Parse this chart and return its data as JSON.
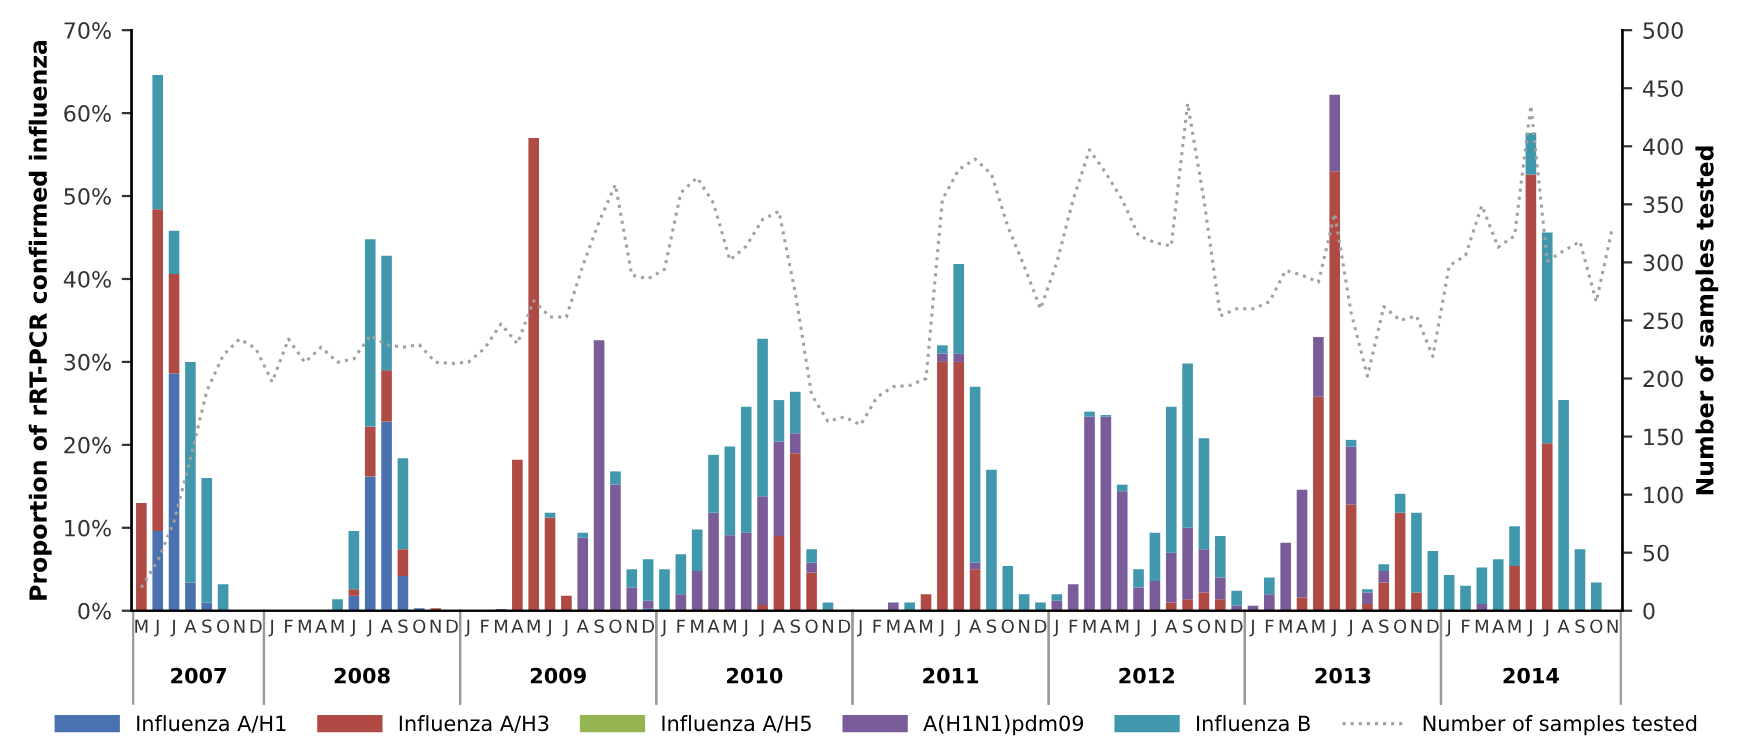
{
  "chart_data": {
    "type": "bar",
    "stacked": true,
    "ylabel": "Proportion of rRT-PCR confirmed influenza",
    "y2label": "Number of samples tested",
    "categories": [
      "M",
      "J",
      "J",
      "A",
      "S",
      "O",
      "N",
      "D",
      "J",
      "F",
      "M",
      "A",
      "M",
      "J",
      "J",
      "A",
      "S",
      "O",
      "N",
      "D",
      "J",
      "F",
      "M",
      "A",
      "M",
      "J",
      "J",
      "A",
      "S",
      "O",
      "N",
      "D",
      "J",
      "F",
      "M",
      "A",
      "M",
      "J",
      "J",
      "A",
      "S",
      "O",
      "N",
      "D",
      "J",
      "F",
      "M",
      "A",
      "M",
      "J",
      "J",
      "A",
      "S",
      "O",
      "N",
      "D",
      "J",
      "F",
      "M",
      "A",
      "M",
      "J",
      "J",
      "A",
      "S",
      "O",
      "N",
      "D",
      "J",
      "F",
      "M",
      "A",
      "M",
      "J",
      "J",
      "A",
      "S",
      "O",
      "N",
      "D",
      "J",
      "F",
      "M",
      "A",
      "M",
      "J",
      "J",
      "A",
      "S",
      "O",
      "N"
    ],
    "annotations": [
      "2007",
      "2008",
      "2009",
      "2010",
      "2011",
      "2012",
      "2013",
      "2014"
    ],
    "ylim": [
      0,
      70
    ],
    "yticks": [
      {
        "value": 0,
        "label": "0%"
      },
      {
        "value": 10,
        "label": "10%"
      },
      {
        "value": 20,
        "label": "20%"
      },
      {
        "value": 30,
        "label": "30%"
      },
      {
        "value": 40,
        "label": "40%"
      },
      {
        "value": 50,
        "label": "50%"
      },
      {
        "value": 60,
        "label": "60%"
      },
      {
        "value": 70,
        "label": "70%"
      }
    ],
    "y2lim": [
      0,
      500
    ],
    "y2ticks": [
      0,
      50,
      100,
      150,
      200,
      250,
      300,
      350,
      400,
      450,
      500
    ],
    "grid": false,
    "legend": "bottom",
    "series": [
      {
        "name": "Influenza A/H1",
        "color": "#4a72b0",
        "values": [
          0,
          9.6,
          28.6,
          3.4,
          1.0,
          0,
          0,
          0,
          0,
          0,
          0,
          0,
          0,
          1.8,
          16.2,
          22.8,
          4.2,
          0.3,
          0,
          0,
          0,
          0,
          0,
          0,
          0,
          0,
          0,
          0,
          0,
          0,
          0,
          0.3,
          0,
          0,
          0,
          0,
          0,
          0,
          0,
          0,
          0,
          0,
          0,
          0,
          0,
          0,
          0,
          0,
          0,
          0,
          0,
          0,
          0,
          0,
          0,
          0,
          0,
          0,
          0,
          0,
          0,
          0,
          0,
          0,
          0,
          0,
          0,
          0,
          0,
          0,
          0,
          0,
          0,
          0,
          0,
          0,
          0,
          0,
          0,
          0,
          0,
          0,
          0,
          0,
          0,
          0,
          0,
          0,
          0,
          0,
          0
        ]
      },
      {
        "name": "Influenza A/H3",
        "color": "#b04a45",
        "values": [
          13.0,
          38.8,
          12.0,
          0,
          0,
          0,
          0,
          0,
          0,
          0,
          0,
          0,
          0,
          0.8,
          6.0,
          6.2,
          3.2,
          0,
          0.3,
          0,
          0,
          0,
          0,
          18.2,
          57.0,
          11.2,
          1.8,
          0,
          0,
          0,
          0,
          0,
          0,
          0,
          0,
          0,
          0,
          0,
          0.7,
          9.0,
          19.0,
          4.6,
          0,
          0,
          0,
          0,
          0,
          0,
          2.0,
          30.0,
          30.0,
          5.0,
          0,
          0,
          0,
          0,
          0,
          0,
          0,
          0,
          0,
          0,
          0,
          1.0,
          1.4,
          2.2,
          1.4,
          0,
          0,
          0,
          0,
          1.6,
          25.8,
          53.0,
          12.8,
          0.8,
          3.4,
          11.8,
          2.2,
          0,
          0,
          0,
          0,
          0,
          5.4,
          52.6,
          20.2,
          0,
          0,
          0,
          0
        ]
      },
      {
        "name": "Influenza A/H5",
        "color": "#94b552",
        "values": [
          0,
          0,
          0,
          0,
          0,
          0,
          0,
          0,
          0,
          0,
          0,
          0,
          0,
          0,
          0,
          0,
          0,
          0,
          0,
          0,
          0,
          0,
          0,
          0,
          0,
          0,
          0,
          0,
          0,
          0,
          0,
          0,
          0,
          0,
          0,
          0,
          0,
          0,
          0,
          0,
          0,
          0,
          0,
          0,
          0,
          0,
          0,
          0,
          0,
          0,
          0,
          0,
          0,
          0,
          0,
          0,
          0,
          0,
          0,
          0,
          0,
          0,
          0,
          0,
          0,
          0,
          0,
          0,
          0,
          0,
          0,
          0,
          0,
          0,
          0,
          0,
          0,
          0,
          0,
          0,
          0,
          0,
          0,
          0,
          0,
          0,
          0,
          0,
          0,
          0,
          0
        ]
      },
      {
        "name": "A(H1N1)pdm09",
        "color": "#7a5c9a",
        "values": [
          0,
          0,
          0,
          0,
          0,
          0,
          0,
          0,
          0,
          0,
          0,
          0,
          0,
          0,
          0,
          0,
          0,
          0,
          0,
          0,
          0,
          0,
          0.2,
          0,
          0,
          0,
          0,
          8.8,
          32.6,
          15.2,
          2.8,
          0.9,
          0,
          2.0,
          4.8,
          11.8,
          9.1,
          9.4,
          13.1,
          11.4,
          2.4,
          1.2,
          0,
          0,
          0,
          0,
          1.0,
          0,
          0,
          1.0,
          1.0,
          0.8,
          0,
          0,
          0,
          0,
          1.2,
          3.2,
          23.4,
          23.4,
          14.4,
          2.8,
          3.6,
          6.0,
          8.6,
          5.2,
          2.6,
          0.6,
          0.6,
          2.0,
          8.2,
          13.0,
          7.2,
          9.2,
          7.0,
          1.4,
          1.4,
          0,
          0,
          0,
          0,
          0,
          0.8,
          0,
          0,
          0,
          0,
          0,
          0,
          0,
          0
        ]
      },
      {
        "name": "Influenza B",
        "color": "#4198ac",
        "values": [
          0,
          16.2,
          5.2,
          26.6,
          15.0,
          3.2,
          0,
          0,
          0,
          0,
          0,
          0,
          1.4,
          7.0,
          22.6,
          13.8,
          11.0,
          0,
          0,
          0,
          0,
          0,
          0,
          0,
          0,
          0.6,
          0,
          0.6,
          0,
          1.6,
          2.2,
          5.0,
          5.0,
          4.8,
          5.0,
          7.0,
          10.7,
          15.2,
          19.0,
          5.0,
          5.0,
          1.6,
          1.0,
          0,
          0,
          0,
          0,
          1.0,
          0,
          1.0,
          10.8,
          21.2,
          17.0,
          5.4,
          2.0,
          1.0,
          0.8,
          0,
          0.6,
          0.2,
          0.8,
          2.2,
          5.8,
          17.6,
          19.8,
          13.4,
          5.0,
          1.8,
          0,
          2.0,
          0,
          0,
          0,
          0,
          0.8,
          0.4,
          0.8,
          2.3,
          9.6,
          7.2,
          4.3,
          3.0,
          4.4,
          6.2,
          4.8,
          5.0,
          25.4,
          25.4,
          7.4,
          3.4,
          0
        ]
      },
      {
        "name": "Number of samples tested",
        "type": "line",
        "axis": "y2",
        "color": "#a0a0a0",
        "line_style": "dotted",
        "marker": "none",
        "values": [
          20,
          43,
          77,
          131,
          189,
          220,
          234,
          226,
          197,
          234,
          214,
          227,
          214,
          217,
          237,
          229,
          227,
          229,
          214,
          213,
          214,
          226,
          247,
          230,
          267,
          253,
          253,
          297,
          335,
          367,
          289,
          286,
          294,
          360,
          373,
          351,
          302,
          314,
          337,
          344,
          274,
          186,
          163,
          167,
          160,
          184,
          193,
          194,
          200,
          354,
          380,
          389,
          376,
          331,
          297,
          260,
          300,
          354,
          397,
          377,
          354,
          323,
          317,
          314,
          437,
          354,
          254,
          260,
          260,
          266,
          293,
          289,
          283,
          342,
          257,
          202,
          262,
          250,
          254,
          219,
          297,
          306,
          349,
          313,
          323,
          435,
          301,
          310,
          318,
          266,
          331
        ]
      }
    ]
  }
}
